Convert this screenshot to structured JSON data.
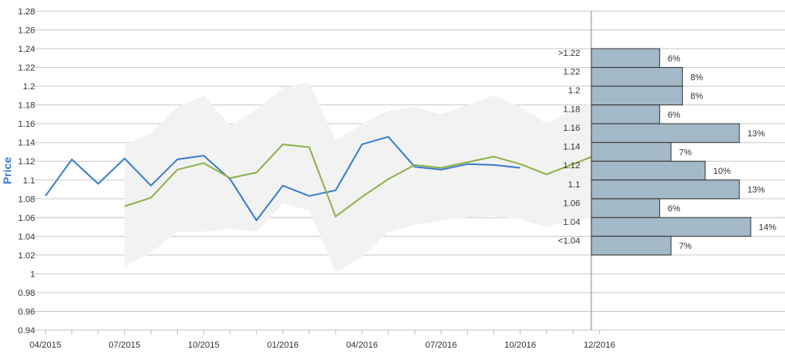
{
  "chart_data": {
    "type": "line",
    "ylabel": "Price",
    "ylim": [
      0.94,
      1.28
    ],
    "yticks": [
      "0.94",
      "0.96",
      "0.98",
      "1",
      "1.02",
      "1.04",
      "1.06",
      "1.08",
      "1.1",
      "1.12",
      "1.14",
      "1.16",
      "1.18",
      "1.2",
      "1.22",
      "1.24",
      "1.26",
      "1.28"
    ],
    "xticks": [
      "04/2015",
      "07/2015",
      "10/2015",
      "01/2016",
      "04/2016",
      "07/2016",
      "10/2016",
      "12/2016"
    ],
    "grid": true,
    "colors": {
      "actual": "#3a7dc9",
      "forecast": "#8db14a",
      "band": "#f2f2f2",
      "hist_fill": "#a3b9c7",
      "hist_stroke": "#333333",
      "grid": "#c8c8c8",
      "axis": "#6e8fa8"
    },
    "series": [
      {
        "x": [
          0,
          1,
          2,
          3,
          4,
          5,
          6,
          7,
          8,
          9,
          10,
          11,
          12,
          13,
          14,
          15,
          16,
          17,
          18
        ],
        "values": [
          1.083,
          1.122,
          1.096,
          1.123,
          1.094,
          1.122,
          1.126,
          1.101,
          1.057,
          1.094,
          1.083,
          1.089,
          1.138,
          1.146,
          1.114,
          1.111,
          1.117,
          1.116,
          1.113
        ]
      },
      {
        "x": [
          3,
          4,
          5,
          6,
          7,
          8,
          9,
          10,
          11,
          12,
          13,
          14,
          15,
          16,
          17,
          18,
          19,
          20,
          21
        ],
        "values": [
          1.072,
          1.081,
          1.111,
          1.118,
          1.102,
          1.108,
          1.138,
          1.135,
          1.061,
          1.082,
          1.101,
          1.116,
          1.113,
          1.119,
          1.125,
          1.117,
          1.106,
          1.117,
          1.128
        ]
      }
    ],
    "band": {
      "x": [
        3,
        4,
        5,
        6,
        7,
        8,
        9,
        10,
        11,
        12,
        13,
        14,
        15,
        16,
        17,
        18,
        19,
        20,
        21
      ],
      "upper": [
        1.137,
        1.15,
        1.178,
        1.19,
        1.158,
        1.175,
        1.198,
        1.204,
        1.142,
        1.16,
        1.174,
        1.178,
        1.17,
        1.18,
        1.19,
        1.178,
        1.16,
        1.175,
        1.185
      ],
      "lower": [
        1.008,
        1.022,
        1.045,
        1.045,
        1.048,
        1.045,
        1.075,
        1.068,
        1.002,
        1.018,
        1.045,
        1.052,
        1.057,
        1.06,
        1.062,
        1.058,
        1.05,
        1.058,
        1.06
      ]
    },
    "histogram": {
      "bins": [
        ">1.22",
        "1.22",
        "1.2",
        "1.18",
        "1.16",
        "1.14",
        "1.12",
        "1.1",
        "1.06",
        "1.04",
        "<1.04"
      ],
      "bin_centers": [
        1.23,
        1.21,
        1.19,
        1.17,
        1.15,
        1.13,
        1.11,
        1.09,
        1.07,
        1.05,
        1.03
      ],
      "values": [
        6,
        8,
        8,
        6,
        13,
        7,
        10,
        13,
        6,
        14,
        7
      ],
      "labels": [
        "6%",
        "8%",
        "8%",
        "6%",
        "13%",
        "7%",
        "10%",
        "13%",
        "6%",
        "14%",
        "7%"
      ]
    }
  }
}
